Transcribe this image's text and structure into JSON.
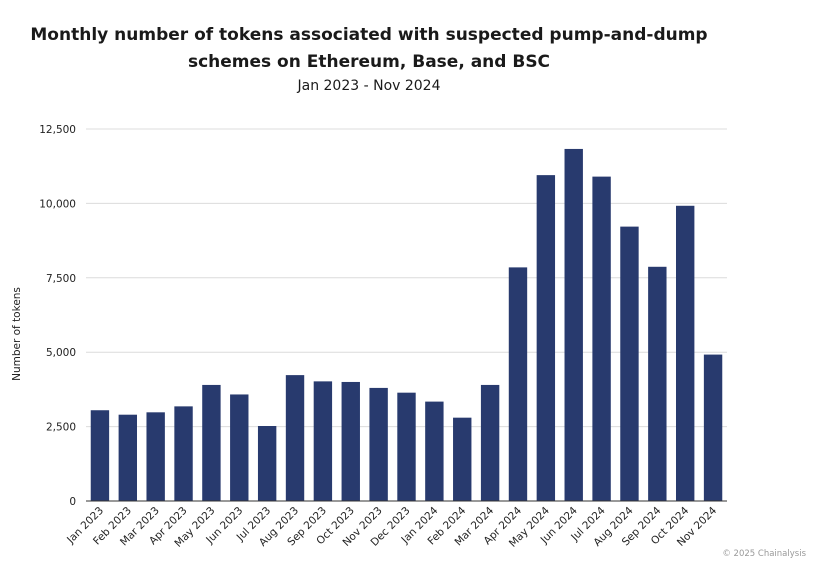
{
  "chart_data": {
    "type": "bar",
    "title_line1": "Monthly number of tokens associated with suspected pump-and-dump",
    "title_line2": "schemes on Ethereum, Base, and BSC",
    "subtitle": "Jan 2023 - Nov 2024",
    "ylabel": "Number of tokens",
    "xlabel": "",
    "ylim": [
      0,
      12500
    ],
    "yticks": [
      0,
      2500,
      5000,
      7500,
      10000,
      12500
    ],
    "ytick_labels": [
      "0",
      "2,500",
      "5,000",
      "7,500",
      "10,000",
      "12,500"
    ],
    "grid": true,
    "bar_color": "#283a6e",
    "categories": [
      "Jan 2023",
      "Feb 2023",
      "Mar 2023",
      "Apr 2023",
      "May 2023",
      "Jun 2023",
      "Jul 2023",
      "Aug 2023",
      "Sep 2023",
      "Oct 2023",
      "Nov 2023",
      "Dec 2023",
      "Jan 2024",
      "Feb 2024",
      "Mar 2024",
      "Apr 2024",
      "May 2024",
      "Jun 2024",
      "Jul 2024",
      "Aug 2024",
      "Sep 2024",
      "Oct 2024",
      "Nov 2024"
    ],
    "values": [
      3050,
      2900,
      2980,
      3180,
      3900,
      3580,
      2520,
      4230,
      4020,
      4000,
      3800,
      3640,
      3340,
      2800,
      3900,
      7850,
      10950,
      11830,
      10900,
      9220,
      7870,
      9920,
      4920
    ]
  },
  "footer": "© 2025 Chainalysis"
}
